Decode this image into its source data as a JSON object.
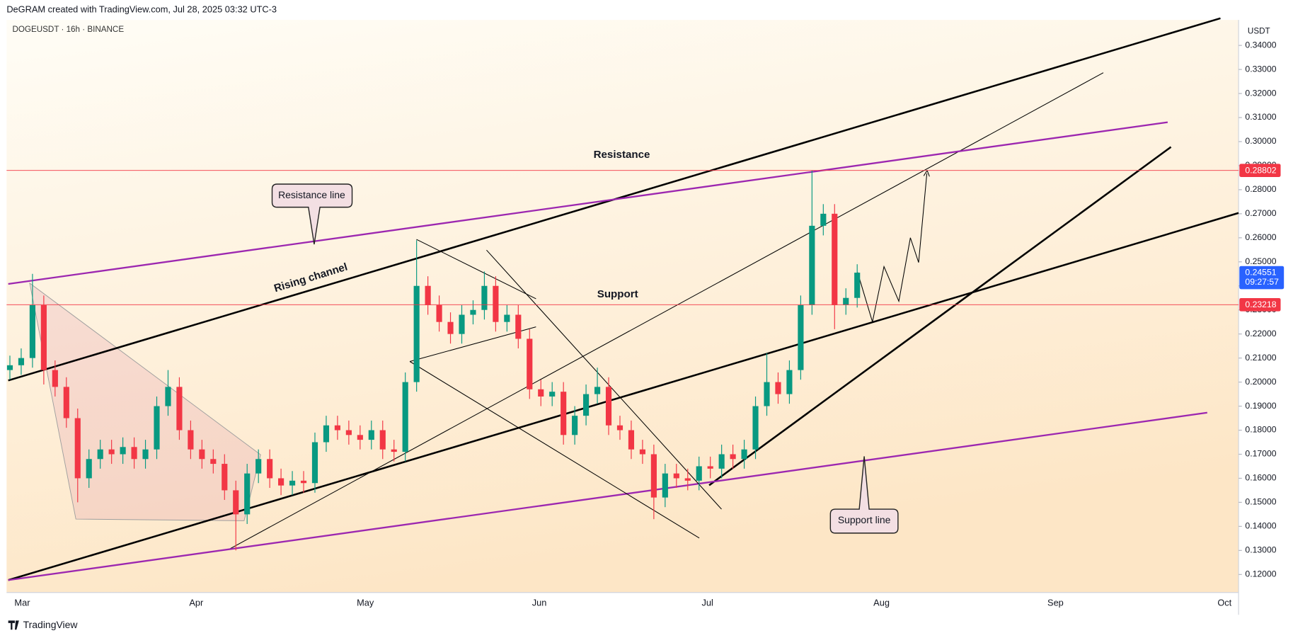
{
  "header": {
    "title": "DeGRAM created with TradingView.com, Jul 28, 2025 03:32 UTC-3",
    "symbol": "DOGEUSDT · 16h · BINANCE",
    "currency": "USDT"
  },
  "chart_data": {
    "type": "candlestick",
    "open": [
      0.205,
      0.207,
      0.21,
      0.232,
      0.205,
      0.198,
      0.185,
      0.16,
      0.168,
      0.172,
      0.17,
      0.173,
      0.168,
      0.172,
      0.19,
      0.198,
      0.18,
      0.172,
      0.168,
      0.166,
      0.155,
      0.145,
      0.162,
      0.168,
      0.16,
      0.157,
      0.159,
      0.158,
      0.175,
      0.182,
      0.18,
      0.178,
      0.176,
      0.18,
      0.172,
      0.171,
      0.2,
      0.24,
      0.232,
      0.225,
      0.22,
      0.228,
      0.23,
      0.24,
      0.225,
      0.228,
      0.218,
      0.197,
      0.194,
      0.196,
      0.178,
      0.186,
      0.195,
      0.198,
      0.182,
      0.18,
      0.172,
      0.17,
      0.152,
      0.162,
      0.16,
      0.159,
      0.165,
      0.164,
      0.17,
      0.168,
      0.172,
      0.19,
      0.2,
      0.195,
      0.205,
      0.232,
      0.265,
      0.27,
      0.232,
      0.235
    ],
    "high": [
      0.211,
      0.214,
      0.245,
      0.236,
      0.209,
      0.202,
      0.189,
      0.172,
      0.176,
      0.176,
      0.177,
      0.177,
      0.176,
      0.194,
      0.205,
      0.202,
      0.184,
      0.176,
      0.172,
      0.17,
      0.159,
      0.166,
      0.172,
      0.172,
      0.164,
      0.163,
      0.163,
      0.179,
      0.186,
      0.186,
      0.184,
      0.182,
      0.184,
      0.184,
      0.176,
      0.204,
      0.259,
      0.244,
      0.236,
      0.229,
      0.232,
      0.234,
      0.246,
      0.244,
      0.232,
      0.232,
      0.222,
      0.201,
      0.2,
      0.2,
      0.19,
      0.199,
      0.206,
      0.202,
      0.186,
      0.184,
      0.176,
      0.174,
      0.166,
      0.166,
      0.164,
      0.169,
      0.169,
      0.174,
      0.174,
      0.176,
      0.194,
      0.212,
      0.204,
      0.209,
      0.236,
      0.288,
      0.274,
      0.274,
      0.239,
      0.249
    ],
    "low": [
      0.201,
      0.203,
      0.206,
      0.199,
      0.194,
      0.181,
      0.15,
      0.156,
      0.164,
      0.166,
      0.166,
      0.164,
      0.164,
      0.168,
      0.186,
      0.176,
      0.168,
      0.164,
      0.162,
      0.151,
      0.13,
      0.141,
      0.158,
      0.156,
      0.153,
      0.153,
      0.154,
      0.154,
      0.171,
      0.176,
      0.174,
      0.172,
      0.172,
      0.168,
      0.167,
      0.167,
      0.196,
      0.228,
      0.221,
      0.216,
      0.216,
      0.224,
      0.226,
      0.221,
      0.221,
      0.214,
      0.193,
      0.19,
      0.19,
      0.174,
      0.174,
      0.182,
      0.191,
      0.178,
      0.176,
      0.168,
      0.166,
      0.143,
      0.148,
      0.156,
      0.155,
      0.155,
      0.16,
      0.16,
      0.164,
      0.164,
      0.168,
      0.186,
      0.191,
      0.191,
      0.201,
      0.228,
      0.261,
      0.222,
      0.228,
      0.231
    ],
    "close": [
      0.207,
      0.21,
      0.232,
      0.205,
      0.198,
      0.185,
      0.16,
      0.168,
      0.172,
      0.17,
      0.173,
      0.168,
      0.172,
      0.19,
      0.198,
      0.18,
      0.172,
      0.168,
      0.166,
      0.155,
      0.145,
      0.162,
      0.168,
      0.16,
      0.157,
      0.159,
      0.158,
      0.175,
      0.182,
      0.18,
      0.178,
      0.176,
      0.18,
      0.172,
      0.171,
      0.2,
      0.24,
      0.232,
      0.225,
      0.22,
      0.228,
      0.23,
      0.24,
      0.225,
      0.228,
      0.218,
      0.197,
      0.194,
      0.196,
      0.178,
      0.186,
      0.195,
      0.198,
      0.182,
      0.18,
      0.172,
      0.17,
      0.152,
      0.162,
      0.16,
      0.159,
      0.165,
      0.164,
      0.17,
      0.168,
      0.172,
      0.19,
      0.2,
      0.195,
      0.205,
      0.232,
      0.265,
      0.27,
      0.232,
      0.235,
      0.2455
    ],
    "colors": {
      "up": "#089981",
      "down": "#f23645",
      "level": "#f23645",
      "last": "#2962ff"
    },
    "ylim": [
      0.1125,
      0.3506
    ],
    "yticks": [
      {
        "value": 0.12,
        "label": "0.12000"
      },
      {
        "value": 0.13,
        "label": "0.13000"
      },
      {
        "value": 0.14,
        "label": "0.14000"
      },
      {
        "value": 0.15,
        "label": "0.15000"
      },
      {
        "value": 0.16,
        "label": "0.16000"
      },
      {
        "value": 0.17,
        "label": "0.17000"
      },
      {
        "value": 0.18,
        "label": "0.18000"
      },
      {
        "value": 0.19,
        "label": "0.19000"
      },
      {
        "value": 0.2,
        "label": "0.20000"
      },
      {
        "value": 0.21,
        "label": "0.21000"
      },
      {
        "value": 0.22,
        "label": "0.22000"
      },
      {
        "value": 0.23,
        "label": "0.23000"
      },
      {
        "value": 0.24,
        "label": "0.24000"
      },
      {
        "value": 0.25,
        "label": "0.25000"
      },
      {
        "value": 0.26,
        "label": "0.26000"
      },
      {
        "value": 0.27,
        "label": "0.27000"
      },
      {
        "value": 0.28,
        "label": "0.28000"
      },
      {
        "value": 0.29,
        "label": "0.29000"
      },
      {
        "value": 0.3,
        "label": "0.30000"
      },
      {
        "value": 0.31,
        "label": "0.31000"
      },
      {
        "value": 0.32,
        "label": "0.32000"
      },
      {
        "value": 0.33,
        "label": "0.33000"
      },
      {
        "value": 0.34,
        "label": "0.34000"
      }
    ],
    "xticks": [
      "Mar",
      "Apr",
      "May",
      "Jun",
      "Jul",
      "Aug",
      "Sep",
      "Oct"
    ],
    "levels": [
      0.28802,
      0.23218
    ],
    "last_price": 0.24551,
    "countdown": "09:27:57",
    "annotations": {
      "resistance": "Resistance",
      "support": "Support",
      "channel": "Rising channel",
      "resistance_line": "Resistance line",
      "support_line": "Support line"
    }
  },
  "footer": {
    "brand": "TradingView"
  }
}
